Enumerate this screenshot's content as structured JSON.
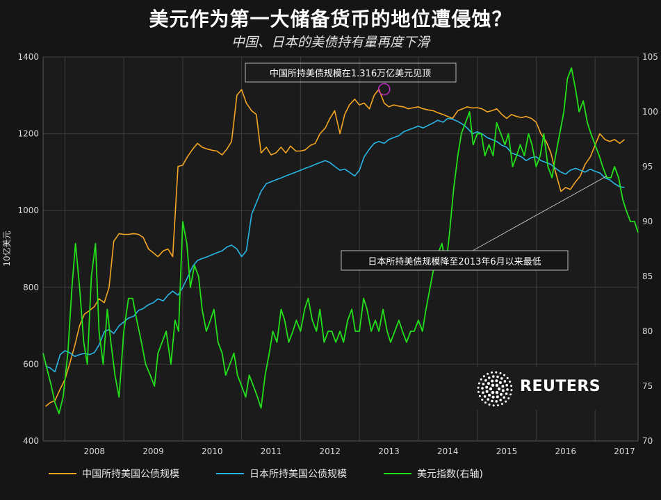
{
  "title": "美元作为第一大储备货币的地位遭侵蚀？",
  "subtitle": "中国、日本的美债持有量再度下滑",
  "colors": {
    "background": "#151515",
    "china": "#f5a623",
    "japan": "#29b6e6",
    "usd": "#22e01a",
    "grid": "#3a3a3a",
    "annotation_circle": "#c02cc0"
  },
  "chart_data": {
    "type": "line",
    "title": "美元作为第一大储备货币的地位遭侵蚀？",
    "subtitle": "中国、日本的美债持有量再度下滑",
    "ylabel": "10亿美元",
    "ylim": [
      400,
      1400
    ],
    "y2lim": [
      70,
      105
    ],
    "x_range": [
      2007.63,
      2017.73
    ],
    "yticks": [
      400,
      600,
      800,
      1000,
      1200,
      1400
    ],
    "y2ticks": [
      70,
      75,
      80,
      85,
      90,
      95,
      100,
      105
    ],
    "x_tick_labels": [
      "2008",
      "2009",
      "2010",
      "2011",
      "2012",
      "2013",
      "2014",
      "2015",
      "2016",
      "2017"
    ],
    "grid": true,
    "legend_position": "bottom",
    "annotations": [
      {
        "text": "中国所持美债规模在1.316万亿美元见顶",
        "x": 2013.42,
        "y": 1316
      },
      {
        "text": "日本所持美债规模降至2013年6月以来最低",
        "x": 2017.6,
        "y": 1090
      }
    ],
    "series": [
      {
        "name": "中国所持美国公债规模",
        "axis": "left",
        "x": [
          2007.67,
          2007.75,
          2007.83,
          2007.92,
          2008.0,
          2008.08,
          2008.17,
          2008.25,
          2008.33,
          2008.42,
          2008.5,
          2008.58,
          2008.67,
          2008.75,
          2008.83,
          2008.92,
          2009.0,
          2009.08,
          2009.17,
          2009.25,
          2009.33,
          2009.42,
          2009.5,
          2009.58,
          2009.67,
          2009.75,
          2009.83,
          2009.92,
          2010.0,
          2010.08,
          2010.17,
          2010.25,
          2010.33,
          2010.42,
          2010.5,
          2010.58,
          2010.67,
          2010.75,
          2010.83,
          2010.92,
          2011.0,
          2011.08,
          2011.17,
          2011.25,
          2011.33,
          2011.42,
          2011.5,
          2011.58,
          2011.67,
          2011.75,
          2011.83,
          2011.92,
          2012.0,
          2012.08,
          2012.17,
          2012.25,
          2012.33,
          2012.42,
          2012.5,
          2012.58,
          2012.67,
          2012.75,
          2012.83,
          2012.92,
          2013.0,
          2013.08,
          2013.17,
          2013.25,
          2013.33,
          2013.42,
          2013.5,
          2013.58,
          2013.67,
          2013.75,
          2013.83,
          2013.92,
          2014.0,
          2014.08,
          2014.17,
          2014.25,
          2014.33,
          2014.42,
          2014.5,
          2014.58,
          2014.67,
          2014.75,
          2014.83,
          2014.92,
          2015.0,
          2015.08,
          2015.17,
          2015.25,
          2015.33,
          2015.42,
          2015.5,
          2015.58,
          2015.67,
          2015.75,
          2015.83,
          2015.92,
          2016.0,
          2016.08,
          2016.17,
          2016.25,
          2016.33,
          2016.42,
          2016.5,
          2016.58,
          2016.67,
          2016.75,
          2016.83,
          2016.92,
          2017.0,
          2017.08,
          2017.17,
          2017.25,
          2017.33,
          2017.42,
          2017.5
        ],
        "values": [
          490,
          500,
          505,
          535,
          560,
          600,
          650,
          700,
          730,
          740,
          750,
          770,
          760,
          800,
          920,
          940,
          938,
          938,
          940,
          938,
          930,
          900,
          890,
          880,
          895,
          900,
          880,
          1115,
          1118,
          1140,
          1160,
          1175,
          1165,
          1160,
          1157,
          1155,
          1145,
          1160,
          1180,
          1300,
          1315,
          1280,
          1260,
          1250,
          1150,
          1165,
          1145,
          1150,
          1165,
          1150,
          1168,
          1155,
          1155,
          1158,
          1170,
          1175,
          1200,
          1215,
          1240,
          1260,
          1200,
          1250,
          1275,
          1290,
          1275,
          1280,
          1265,
          1300,
          1316,
          1280,
          1270,
          1275,
          1272,
          1270,
          1265,
          1268,
          1270,
          1265,
          1262,
          1260,
          1255,
          1250,
          1245,
          1240,
          1260,
          1265,
          1270,
          1267,
          1268,
          1265,
          1257,
          1260,
          1265,
          1250,
          1240,
          1250,
          1245,
          1242,
          1245,
          1240,
          1230,
          1200,
          1180,
          1150,
          1100,
          1050,
          1060,
          1055,
          1075,
          1090,
          1120,
          1140,
          1170,
          1200,
          1185,
          1180,
          1185,
          1175,
          1185
        ]
      },
      {
        "name": "日本所持美国公债规模",
        "axis": "left",
        "x": [
          2007.67,
          2007.75,
          2007.83,
          2007.92,
          2008.0,
          2008.08,
          2008.17,
          2008.25,
          2008.33,
          2008.42,
          2008.5,
          2008.58,
          2008.67,
          2008.75,
          2008.83,
          2008.92,
          2009.0,
          2009.08,
          2009.17,
          2009.25,
          2009.33,
          2009.42,
          2009.5,
          2009.58,
          2009.67,
          2009.75,
          2009.83,
          2009.92,
          2010.0,
          2010.08,
          2010.17,
          2010.25,
          2010.33,
          2010.42,
          2010.5,
          2010.58,
          2010.67,
          2010.75,
          2010.83,
          2010.92,
          2011.0,
          2011.08,
          2011.17,
          2011.25,
          2011.33,
          2011.42,
          2011.5,
          2011.58,
          2011.67,
          2011.75,
          2011.83,
          2011.92,
          2012.0,
          2012.08,
          2012.17,
          2012.25,
          2012.33,
          2012.42,
          2012.5,
          2012.58,
          2012.67,
          2012.75,
          2012.83,
          2012.92,
          2013.0,
          2013.08,
          2013.17,
          2013.25,
          2013.33,
          2013.42,
          2013.5,
          2013.58,
          2013.67,
          2013.75,
          2013.83,
          2013.92,
          2014.0,
          2014.08,
          2014.17,
          2014.25,
          2014.33,
          2014.42,
          2014.5,
          2014.58,
          2014.67,
          2014.75,
          2014.83,
          2014.92,
          2015.0,
          2015.08,
          2015.17,
          2015.25,
          2015.33,
          2015.42,
          2015.5,
          2015.58,
          2015.67,
          2015.75,
          2015.83,
          2015.92,
          2016.0,
          2016.08,
          2016.17,
          2016.25,
          2016.33,
          2016.42,
          2016.5,
          2016.58,
          2016.67,
          2016.75,
          2016.83,
          2016.92,
          2017.0,
          2017.08,
          2017.17,
          2017.25,
          2017.33,
          2017.42,
          2017.5
        ],
        "values": [
          595,
          590,
          580,
          625,
          635,
          630,
          620,
          625,
          628,
          625,
          630,
          650,
          685,
          690,
          680,
          700,
          710,
          720,
          725,
          740,
          745,
          755,
          760,
          770,
          765,
          780,
          790,
          780,
          800,
          825,
          855,
          870,
          875,
          880,
          885,
          890,
          895,
          905,
          910,
          900,
          880,
          895,
          990,
          1020,
          1050,
          1070,
          1075,
          1080,
          1085,
          1090,
          1095,
          1100,
          1105,
          1110,
          1115,
          1120,
          1125,
          1130,
          1125,
          1115,
          1105,
          1108,
          1100,
          1090,
          1105,
          1140,
          1160,
          1175,
          1180,
          1175,
          1185,
          1190,
          1195,
          1205,
          1210,
          1215,
          1220,
          1215,
          1222,
          1228,
          1235,
          1230,
          1240,
          1238,
          1232,
          1225,
          1215,
          1200,
          1205,
          1200,
          1190,
          1185,
          1180,
          1170,
          1165,
          1150,
          1145,
          1140,
          1130,
          1138,
          1140,
          1130,
          1125,
          1120,
          1110,
          1100,
          1095,
          1105,
          1110,
          1105,
          1100,
          1108,
          1102,
          1098,
          1085,
          1080,
          1070,
          1062,
          1060
        ]
      },
      {
        "name": "美元指数(右轴)",
        "axis": "right",
        "x": [
          2007.63,
          2007.7,
          2007.77,
          2007.83,
          2007.9,
          2007.97,
          2008.05,
          2008.12,
          2008.18,
          2008.25,
          2008.32,
          2008.38,
          2008.45,
          2008.52,
          2008.58,
          2008.65,
          2008.72,
          2008.78,
          2008.85,
          2008.92,
          2009.0,
          2009.08,
          2009.15,
          2009.22,
          2009.3,
          2009.37,
          2009.45,
          2009.52,
          2009.58,
          2009.65,
          2009.72,
          2009.8,
          2009.87,
          2009.93,
          2010.0,
          2010.07,
          2010.13,
          2010.2,
          2010.27,
          2010.33,
          2010.4,
          2010.47,
          2010.53,
          2010.6,
          2010.67,
          2010.73,
          2010.8,
          2010.87,
          2010.93,
          2011.0,
          2011.07,
          2011.13,
          2011.2,
          2011.27,
          2011.33,
          2011.4,
          2011.47,
          2011.53,
          2011.6,
          2011.67,
          2011.73,
          2011.8,
          2011.87,
          2011.93,
          2012.0,
          2012.07,
          2012.13,
          2012.2,
          2012.27,
          2012.33,
          2012.4,
          2012.47,
          2012.53,
          2012.6,
          2012.67,
          2012.73,
          2012.8,
          2012.87,
          2012.93,
          2013.0,
          2013.07,
          2013.13,
          2013.2,
          2013.27,
          2013.33,
          2013.4,
          2013.47,
          2013.53,
          2013.6,
          2013.67,
          2013.73,
          2013.8,
          2013.87,
          2013.93,
          2014.0,
          2014.07,
          2014.13,
          2014.2,
          2014.27,
          2014.33,
          2014.4,
          2014.47,
          2014.53,
          2014.6,
          2014.67,
          2014.73,
          2014.8,
          2014.87,
          2014.93,
          2015.0,
          2015.07,
          2015.13,
          2015.2,
          2015.27,
          2015.33,
          2015.4,
          2015.47,
          2015.53,
          2015.6,
          2015.67,
          2015.73,
          2015.8,
          2015.87,
          2015.93,
          2016.0,
          2016.07,
          2016.13,
          2016.2,
          2016.27,
          2016.33,
          2016.4,
          2016.47,
          2016.53,
          2016.6,
          2016.67,
          2016.73,
          2016.8,
          2016.87,
          2016.93,
          2017.0,
          2017.07,
          2017.13,
          2017.2,
          2017.27,
          2017.33,
          2017.4,
          2017.47,
          2017.53,
          2017.6,
          2017.67,
          2017.73
        ],
        "values": [
          78,
          76.5,
          75,
          73.5,
          72.5,
          74,
          78,
          84,
          88,
          84,
          79,
          77,
          85,
          88,
          80,
          77,
          82,
          79,
          76,
          74,
          80,
          83,
          83,
          81,
          79,
          77,
          76,
          75,
          78,
          79,
          80,
          77,
          81,
          80,
          90,
          88,
          84,
          86,
          85,
          82,
          80,
          81,
          82,
          79,
          78,
          76,
          77,
          78,
          76,
          75,
          74,
          76,
          75,
          74,
          73,
          76,
          78,
          80,
          79,
          82,
          81,
          79,
          80,
          81,
          80,
          82,
          83,
          81,
          80,
          82,
          79,
          80,
          80,
          79,
          80,
          79,
          81,
          82,
          80,
          80,
          83,
          82,
          80,
          81,
          80,
          82,
          80,
          79,
          80,
          81,
          80,
          79,
          80,
          80,
          81,
          80,
          82,
          84,
          86,
          87,
          88,
          86,
          89,
          93,
          96,
          98,
          99,
          100,
          97,
          98,
          98,
          96,
          97,
          96,
          99,
          98,
          97,
          98,
          95,
          96,
          97,
          96,
          98,
          97,
          95,
          96,
          98,
          95,
          94,
          96,
          98,
          100,
          103,
          104,
          102,
          100,
          101,
          99,
          98,
          97,
          96,
          95,
          94,
          94,
          95,
          94,
          92,
          91,
          90,
          90,
          89
        ]
      }
    ]
  },
  "legend": {
    "china": "中国所持美国公债规模",
    "japan": "日本所持美国公债规模",
    "usd": "美元指数(右轴)"
  },
  "axes": {
    "left_label": "10亿美元"
  },
  "logo": {
    "text": "REUTERS"
  }
}
